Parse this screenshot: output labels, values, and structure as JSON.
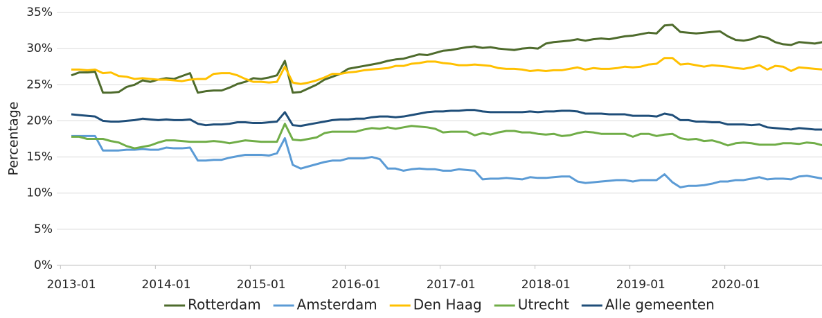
{
  "chart_data": {
    "type": "line",
    "y_label": "Percentage",
    "categories": [
      "2013-01",
      null,
      null,
      null,
      null,
      null,
      null,
      null,
      null,
      null,
      null,
      null,
      "2014-01",
      null,
      null,
      null,
      null,
      null,
      null,
      null,
      null,
      null,
      null,
      null,
      "2015-01",
      null,
      null,
      null,
      null,
      null,
      null,
      null,
      null,
      null,
      null,
      null,
      "2016-01",
      null,
      null,
      null,
      null,
      null,
      null,
      null,
      null,
      null,
      null,
      null,
      "2017-01",
      null,
      null,
      null,
      null,
      null,
      null,
      null,
      null,
      null,
      null,
      null,
      "2018-01",
      null,
      null,
      null,
      null,
      null,
      null,
      null,
      null,
      null,
      null,
      null,
      "2019-01",
      null,
      null,
      null,
      null,
      null,
      null,
      null,
      null,
      null,
      null,
      null,
      "2020-01",
      null,
      null,
      null,
      null,
      null,
      null,
      null,
      null,
      null,
      null,
      null
    ],
    "series": [
      {
        "name": "Rotterdam",
        "color": "#4e6b2c",
        "values": [
          26.3,
          26.7,
          26.7,
          26.8,
          23.9,
          23.9,
          24.0,
          24.7,
          25.0,
          25.6,
          25.4,
          25.7,
          25.9,
          25.8,
          26.2,
          26.6,
          23.9,
          24.1,
          24.2,
          24.2,
          24.6,
          25.1,
          25.4,
          25.9,
          25.8,
          26.0,
          26.3,
          28.3,
          23.9,
          24.0,
          24.5,
          25.0,
          25.7,
          26.1,
          26.5,
          27.2,
          27.4,
          27.6,
          27.8,
          28.0,
          28.3,
          28.5,
          28.6,
          28.9,
          29.2,
          29.1,
          29.4,
          29.7,
          29.8,
          30.0,
          30.2,
          30.3,
          30.1,
          30.2,
          30.0,
          29.9,
          29.8,
          30.0,
          30.1,
          30.0,
          30.7,
          30.9,
          31.0,
          31.1,
          31.3,
          31.1,
          31.3,
          31.4,
          31.3,
          31.5,
          31.7,
          31.8,
          32.0,
          32.2,
          32.1,
          33.2,
          33.3,
          32.3,
          32.2,
          32.1,
          32.2,
          32.3,
          32.4,
          31.7,
          31.2,
          31.1,
          31.3,
          31.7,
          31.5,
          30.9,
          30.6,
          30.5,
          30.9,
          30.8,
          30.7,
          30.9
        ]
      },
      {
        "name": "Amsterdam",
        "color": "#5b9bd5",
        "values": [
          17.9,
          17.9,
          17.9,
          17.9,
          15.9,
          15.9,
          15.9,
          16.0,
          16.0,
          16.1,
          16.0,
          16.0,
          16.3,
          16.2,
          16.2,
          16.3,
          14.5,
          14.5,
          14.6,
          14.6,
          14.9,
          15.1,
          15.3,
          15.3,
          15.3,
          15.2,
          15.5,
          17.6,
          13.9,
          13.4,
          13.7,
          14.0,
          14.3,
          14.5,
          14.5,
          14.8,
          14.8,
          14.8,
          15.0,
          14.7,
          13.4,
          13.4,
          13.1,
          13.3,
          13.4,
          13.3,
          13.3,
          13.1,
          13.1,
          13.3,
          13.2,
          13.1,
          11.9,
          12.0,
          12.0,
          12.1,
          12.0,
          11.9,
          12.2,
          12.1,
          12.1,
          12.2,
          12.3,
          12.3,
          11.6,
          11.4,
          11.5,
          11.6,
          11.7,
          11.8,
          11.8,
          11.6,
          11.8,
          11.8,
          11.8,
          12.6,
          11.5,
          10.8,
          11.0,
          11.0,
          11.1,
          11.3,
          11.6,
          11.6,
          11.8,
          11.8,
          12.0,
          12.2,
          11.9,
          12.0,
          12.0,
          11.9,
          12.3,
          12.4,
          12.2,
          12.0
        ]
      },
      {
        "name": "Den Haag",
        "color": "#ffc000",
        "values": [
          27.1,
          27.1,
          27.0,
          27.1,
          26.6,
          26.7,
          26.2,
          26.1,
          25.8,
          25.9,
          25.8,
          25.7,
          25.7,
          25.6,
          25.5,
          25.7,
          25.8,
          25.8,
          26.5,
          26.6,
          26.6,
          26.3,
          25.8,
          25.4,
          25.4,
          25.3,
          25.4,
          27.5,
          25.3,
          25.1,
          25.3,
          25.6,
          26.0,
          26.5,
          26.5,
          26.7,
          26.8,
          27.0,
          27.1,
          27.2,
          27.3,
          27.6,
          27.6,
          27.9,
          28.0,
          28.2,
          28.2,
          28.0,
          27.9,
          27.7,
          27.7,
          27.8,
          27.7,
          27.6,
          27.3,
          27.2,
          27.2,
          27.1,
          26.9,
          27.0,
          26.9,
          27.0,
          27.0,
          27.2,
          27.4,
          27.1,
          27.3,
          27.2,
          27.2,
          27.3,
          27.5,
          27.4,
          27.5,
          27.8,
          27.9,
          28.7,
          28.7,
          27.8,
          27.9,
          27.7,
          27.5,
          27.7,
          27.6,
          27.5,
          27.3,
          27.2,
          27.4,
          27.7,
          27.1,
          27.6,
          27.5,
          26.9,
          27.4,
          27.3,
          27.2,
          27.1
        ]
      },
      {
        "name": "Utrecht",
        "color": "#70ad47",
        "values": [
          17.8,
          17.8,
          17.5,
          17.5,
          17.5,
          17.2,
          17.0,
          16.5,
          16.2,
          16.4,
          16.6,
          17.0,
          17.3,
          17.3,
          17.2,
          17.1,
          17.1,
          17.1,
          17.2,
          17.1,
          16.9,
          17.1,
          17.3,
          17.2,
          17.1,
          17.1,
          17.1,
          19.6,
          17.4,
          17.3,
          17.5,
          17.7,
          18.3,
          18.5,
          18.5,
          18.5,
          18.5,
          18.8,
          19.0,
          18.9,
          19.1,
          18.9,
          19.1,
          19.3,
          19.2,
          19.1,
          18.9,
          18.4,
          18.5,
          18.5,
          18.5,
          18.0,
          18.3,
          18.1,
          18.4,
          18.6,
          18.6,
          18.4,
          18.4,
          18.2,
          18.1,
          18.2,
          17.9,
          18.0,
          18.3,
          18.5,
          18.4,
          18.2,
          18.2,
          18.2,
          18.2,
          17.8,
          18.2,
          18.2,
          17.9,
          18.1,
          18.2,
          17.6,
          17.4,
          17.5,
          17.2,
          17.3,
          17.0,
          16.6,
          16.9,
          17.0,
          16.9,
          16.7,
          16.7,
          16.7,
          16.9,
          16.9,
          16.8,
          17.0,
          16.9,
          16.6
        ]
      },
      {
        "name": "Alle gemeenten",
        "color": "#1f4e79",
        "values": [
          20.9,
          20.8,
          20.7,
          20.6,
          20.0,
          19.9,
          19.9,
          20.0,
          20.1,
          20.3,
          20.2,
          20.1,
          20.2,
          20.1,
          20.1,
          20.2,
          19.6,
          19.4,
          19.5,
          19.5,
          19.6,
          19.8,
          19.8,
          19.7,
          19.7,
          19.8,
          19.9,
          21.2,
          19.4,
          19.3,
          19.5,
          19.7,
          19.9,
          20.1,
          20.2,
          20.2,
          20.3,
          20.3,
          20.5,
          20.6,
          20.6,
          20.5,
          20.6,
          20.8,
          21.0,
          21.2,
          21.3,
          21.3,
          21.4,
          21.4,
          21.5,
          21.5,
          21.3,
          21.2,
          21.2,
          21.2,
          21.2,
          21.2,
          21.3,
          21.2,
          21.3,
          21.3,
          21.4,
          21.4,
          21.3,
          21.0,
          21.0,
          21.0,
          20.9,
          20.9,
          20.9,
          20.7,
          20.7,
          20.7,
          20.6,
          21.0,
          20.8,
          20.1,
          20.1,
          19.9,
          19.9,
          19.8,
          19.8,
          19.5,
          19.5,
          19.5,
          19.4,
          19.5,
          19.1,
          19.0,
          18.9,
          18.8,
          19.0,
          18.9,
          18.8,
          18.8
        ]
      }
    ],
    "ylim": [
      0,
      35
    ],
    "yticks": [
      {
        "value": 0,
        "label": "0%"
      },
      {
        "value": 5,
        "label": "5%"
      },
      {
        "value": 10,
        "label": "10%"
      },
      {
        "value": 15,
        "label": "15%"
      },
      {
        "value": 20,
        "label": "20%"
      },
      {
        "value": 25,
        "label": "25%"
      },
      {
        "value": 30,
        "label": "30%"
      },
      {
        "value": 35,
        "label": "35%"
      }
    ],
    "grid": true,
    "legend": "bottom"
  }
}
